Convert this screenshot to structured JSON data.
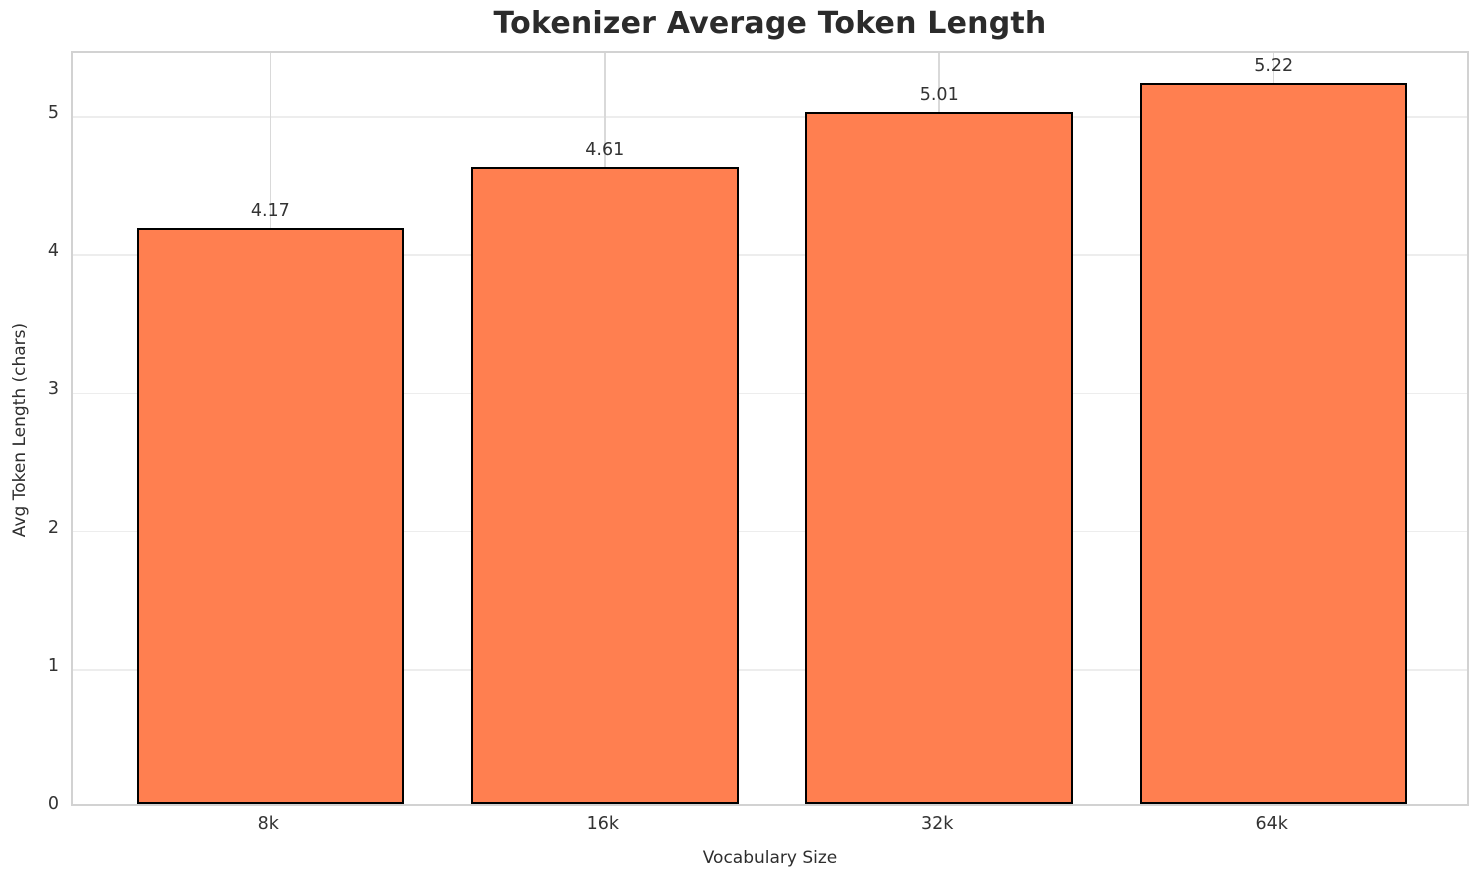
{
  "chart_data": {
    "type": "bar",
    "title": "Tokenizer Average Token Length",
    "xlabel": "Vocabulary Size",
    "ylabel": "Avg Token Length (chars)",
    "categories": [
      "8k",
      "16k",
      "32k",
      "64k"
    ],
    "values": [
      4.17,
      4.61,
      5.01,
      5.22
    ],
    "value_labels": [
      "4.17",
      "4.61",
      "5.01",
      "5.22"
    ],
    "yticks": [
      0,
      1,
      2,
      3,
      4,
      5
    ],
    "ylim": [
      0,
      5.46
    ],
    "grid": true,
    "legend": "none",
    "bar_color": "#FF7F50",
    "bar_edge_color": "#000000",
    "h_grid_color": "#ededed",
    "v_grid_color": "#d9d9d9",
    "spine_color": "#d2d2d2",
    "text_color": "#333333"
  }
}
